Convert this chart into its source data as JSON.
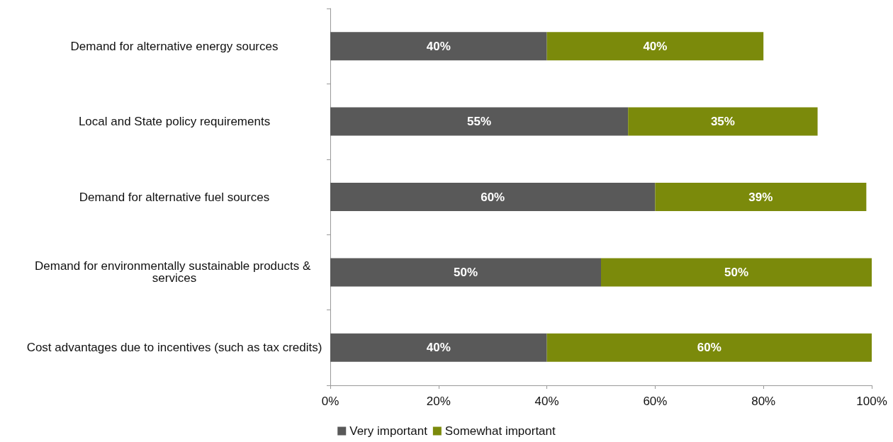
{
  "chart_data": {
    "type": "bar",
    "orientation": "horizontal",
    "stacked": true,
    "categories": [
      "Demand for alternative energy sources",
      "Local and State policy requirements",
      "Demand for alternative fuel sources",
      "Demand for environmentally sustainable products & services",
      "Cost advantages due to incentives (such as tax credits)"
    ],
    "series": [
      {
        "name": "Very important",
        "color": "#595959",
        "values": [
          40,
          55,
          60,
          50,
          40
        ],
        "value_labels": [
          "40%",
          "55%",
          "60%",
          "50%",
          "40%"
        ]
      },
      {
        "name": "Somewhat important",
        "color": "#7b8a0b",
        "values": [
          40,
          35,
          39,
          50,
          60
        ],
        "value_labels": [
          "40%",
          "35%",
          "39%",
          "50%",
          "60%"
        ]
      }
    ],
    "xlim": [
      0,
      100
    ],
    "xticks": [
      {
        "value": 0,
        "label": "0%"
      },
      {
        "value": 20,
        "label": "20%"
      },
      {
        "value": 40,
        "label": "40%"
      },
      {
        "value": 60,
        "label": "60%"
      },
      {
        "value": 80,
        "label": "80%"
      },
      {
        "value": 100,
        "label": "100%"
      }
    ],
    "grid": false,
    "legend": "bottom"
  }
}
